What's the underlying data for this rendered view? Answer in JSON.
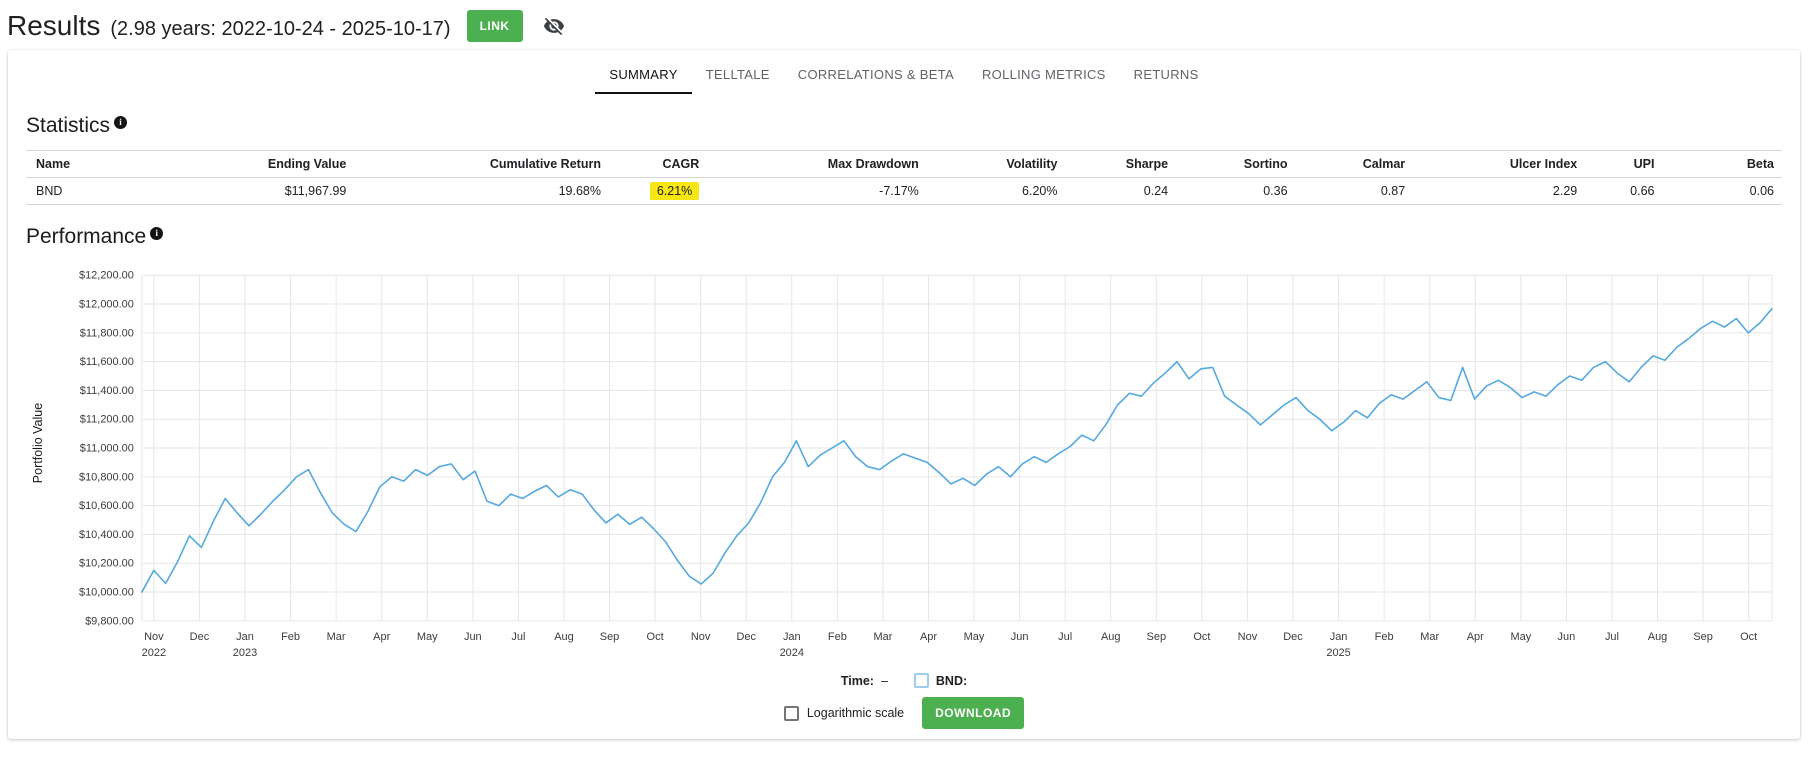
{
  "header": {
    "title": "Results",
    "subtitle": "(2.98 years: 2022-10-24 - 2025-10-17)",
    "link_button": "LINK"
  },
  "tabs": [
    {
      "label": "SUMMARY",
      "active": true
    },
    {
      "label": "TELLTALE",
      "active": false
    },
    {
      "label": "CORRELATIONS & BETA",
      "active": false
    },
    {
      "label": "ROLLING METRICS",
      "active": false
    },
    {
      "label": "RETURNS",
      "active": false
    }
  ],
  "statistics": {
    "heading": "Statistics",
    "columns": [
      "Name",
      "Ending Value",
      "Cumulative Return",
      "CAGR",
      "Max Drawdown",
      "Volatility",
      "Sharpe",
      "Sortino",
      "Calmar",
      "Ulcer Index",
      "UPI",
      "Beta"
    ],
    "rows": [
      [
        "BND",
        "$11,967.99",
        "19.68%",
        "6.21%",
        "-7.17%",
        "6.20%",
        "0.24",
        "0.36",
        "0.87",
        "2.29",
        "0.66",
        "0.06"
      ]
    ],
    "highlight": {
      "row": 0,
      "col": 3
    }
  },
  "performance": {
    "heading": "Performance",
    "y_axis_title": "Portfolio Value"
  },
  "chart_data": {
    "type": "line",
    "title": "Performance",
    "ylabel": "Portfolio Value",
    "ylim": [
      9800,
      12200
    ],
    "y_tick_step": 200,
    "y_ticks": [
      "$9,800.00",
      "$10,000.00",
      "$10,200.00",
      "$10,400.00",
      "$10,600.00",
      "$10,800.00",
      "$11,000.00",
      "$11,200.00",
      "$11,400.00",
      "$11,600.00",
      "$11,800.00",
      "$12,000.00",
      "$12,200.00"
    ],
    "x_range": [
      "2022-10-24",
      "2025-10-17"
    ],
    "x_months": [
      {
        "label": "Nov",
        "year": "2022"
      },
      {
        "label": "Dec"
      },
      {
        "label": "Jan",
        "year": "2023"
      },
      {
        "label": "Feb"
      },
      {
        "label": "Mar"
      },
      {
        "label": "Apr"
      },
      {
        "label": "May"
      },
      {
        "label": "Jun"
      },
      {
        "label": "Jul"
      },
      {
        "label": "Aug"
      },
      {
        "label": "Sep"
      },
      {
        "label": "Oct"
      },
      {
        "label": "Nov"
      },
      {
        "label": "Dec"
      },
      {
        "label": "Jan",
        "year": "2024"
      },
      {
        "label": "Feb"
      },
      {
        "label": "Mar"
      },
      {
        "label": "Apr"
      },
      {
        "label": "May"
      },
      {
        "label": "Jun"
      },
      {
        "label": "Jul"
      },
      {
        "label": "Aug"
      },
      {
        "label": "Sep"
      },
      {
        "label": "Oct"
      },
      {
        "label": "Nov"
      },
      {
        "label": "Dec"
      },
      {
        "label": "Jan",
        "year": "2025"
      },
      {
        "label": "Feb"
      },
      {
        "label": "Mar"
      },
      {
        "label": "Apr"
      },
      {
        "label": "May"
      },
      {
        "label": "Jun"
      },
      {
        "label": "Jul"
      },
      {
        "label": "Aug"
      },
      {
        "label": "Sep"
      },
      {
        "label": "Oct"
      }
    ],
    "grid": true,
    "legend_position": "none",
    "series": [
      {
        "name": "BND",
        "color": "#55a9dd",
        "values": [
          10000,
          10150,
          10060,
          10210,
          10390,
          10310,
          10490,
          10650,
          10550,
          10460,
          10540,
          10630,
          10710,
          10800,
          10850,
          10690,
          10550,
          10470,
          10420,
          10560,
          10730,
          10800,
          10770,
          10850,
          10810,
          10870,
          10890,
          10780,
          10840,
          10630,
          10600,
          10680,
          10650,
          10700,
          10740,
          10660,
          10710,
          10680,
          10570,
          10480,
          10540,
          10470,
          10520,
          10440,
          10350,
          10220,
          10110,
          10055,
          10130,
          10270,
          10390,
          10480,
          10620,
          10800,
          10900,
          11050,
          10870,
          10950,
          11000,
          11050,
          10940,
          10870,
          10850,
          10910,
          10960,
          10930,
          10900,
          10830,
          10750,
          10790,
          10740,
          10820,
          10870,
          10800,
          10890,
          10940,
          10900,
          10960,
          11010,
          11090,
          11050,
          11160,
          11300,
          11380,
          11360,
          11450,
          11520,
          11600,
          11480,
          11550,
          11560,
          11360,
          11300,
          11240,
          11160,
          11230,
          11300,
          11350,
          11260,
          11200,
          11120,
          11180,
          11260,
          11210,
          11310,
          11370,
          11340,
          11400,
          11460,
          11350,
          11330,
          11560,
          11340,
          11430,
          11470,
          11420,
          11350,
          11390,
          11360,
          11440,
          11500,
          11470,
          11560,
          11600,
          11520,
          11460,
          11560,
          11640,
          11610,
          11700,
          11760,
          11830,
          11880,
          11840,
          11900,
          11800,
          11870,
          11968
        ]
      }
    ]
  },
  "chart_footer": {
    "time_label": "Time:",
    "time_value": "–",
    "series_checkbox_label": "BND:",
    "log_checkbox_label": "Logarithmic scale",
    "download_button": "DOWNLOAD"
  },
  "colors": {
    "accent_green": "#4caf50",
    "highlight_yellow": "#f7e613",
    "line_blue": "#55a9dd",
    "grid": "#e6e6e6"
  }
}
